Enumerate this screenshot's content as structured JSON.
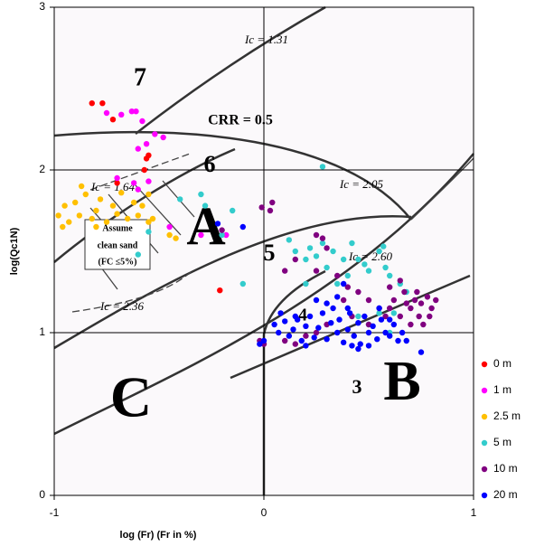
{
  "chart_data": {
    "type": "scatter",
    "xlabel": "log (Fr)    (Fr in %)",
    "ylabel": "log(Qc1N)",
    "xlim": [
      -1,
      1
    ],
    "ylim": [
      0,
      3
    ],
    "xticks": [
      -1,
      0,
      1
    ],
    "yticks": [
      0,
      1,
      2,
      3
    ],
    "grid": true,
    "legend": "right",
    "annotations": [
      "7",
      "CRR = 0.5",
      "Ic = 1.31",
      "6",
      "Ic = 1.64",
      "Assume",
      "clean sand",
      "(FC ≤5%)",
      "A",
      "5",
      "Ic = 2.05",
      "Ic = 2.60",
      "Ic = 2.36",
      "4",
      "C",
      "3",
      "B"
    ],
    "series": [
      {
        "name": "0 m",
        "color": "#ff0000",
        "x": [
          -0.82,
          -0.77,
          -0.72,
          -0.55,
          -0.56,
          -0.57,
          -0.7,
          -0.21
        ],
        "values": [
          2.41,
          2.41,
          2.31,
          2.09,
          2.07,
          2.0,
          1.92,
          1.26
        ]
      },
      {
        "name": "1 m",
        "color": "#ff00ff",
        "x": [
          -0.75,
          -0.68,
          -0.63,
          -0.61,
          -0.58,
          -0.52,
          -0.48,
          -0.6,
          -0.56,
          -0.7,
          -0.62,
          -0.6,
          -0.55,
          -0.3,
          -0.18,
          -0.45
        ],
        "values": [
          2.35,
          2.34,
          2.36,
          2.36,
          2.3,
          2.22,
          2.2,
          2.13,
          2.16,
          1.95,
          1.92,
          1.88,
          1.93,
          1.6,
          1.6,
          1.65
        ]
      },
      {
        "name": "2.5 m",
        "color": "#ffc000",
        "x": [
          -0.98,
          -0.96,
          -0.95,
          -0.93,
          -0.9,
          -0.88,
          -0.85,
          -0.82,
          -0.8,
          -0.78,
          -0.75,
          -0.72,
          -0.7,
          -0.68,
          -0.65,
          -0.62,
          -0.6,
          -0.58,
          -0.55,
          -0.53,
          -0.45,
          -0.42,
          -0.55,
          -0.87,
          -0.8
        ],
        "values": [
          1.72,
          1.65,
          1.78,
          1.68,
          1.8,
          1.72,
          1.85,
          1.7,
          1.75,
          1.82,
          1.68,
          1.78,
          1.73,
          1.86,
          1.7,
          1.8,
          1.72,
          1.78,
          1.85,
          1.7,
          1.6,
          1.58,
          1.68,
          1.9,
          1.65
        ]
      },
      {
        "name": "5 m",
        "color": "#33cccc",
        "x": [
          -0.4,
          -0.3,
          -0.28,
          -0.15,
          -0.6,
          -0.2,
          -0.1,
          -0.55,
          0.12,
          0.15,
          0.2,
          0.22,
          0.25,
          0.28,
          0.3,
          0.33,
          0.38,
          0.42,
          0.45,
          0.48,
          0.5,
          0.55,
          0.57,
          0.58,
          0.6,
          0.28,
          0.35,
          0.45,
          0.5,
          0.55,
          0.62,
          0.6,
          0.65,
          0.68,
          0.4,
          0.2
        ],
        "values": [
          1.82,
          1.85,
          1.78,
          1.75,
          1.48,
          1.6,
          1.3,
          1.62,
          1.57,
          1.5,
          1.45,
          1.52,
          1.47,
          1.55,
          1.4,
          1.5,
          1.45,
          1.55,
          1.45,
          1.42,
          1.38,
          1.5,
          1.53,
          1.4,
          1.35,
          2.02,
          1.3,
          1.1,
          1.05,
          1.12,
          1.12,
          1.0,
          1.3,
          1.25,
          1.35,
          1.3
        ]
      },
      {
        "name": "10 m",
        "color": "#800080",
        "x": [
          0.04,
          0.03,
          0.1,
          0.15,
          0.25,
          0.28,
          0.3,
          0.25,
          0.35,
          0.4,
          0.38,
          0.45,
          0.5,
          0.55,
          0.58,
          0.6,
          0.62,
          0.65,
          0.67,
          0.7,
          0.72,
          0.74,
          0.75,
          0.78,
          0.8,
          0.82,
          0.76,
          0.7,
          0.68,
          0.73,
          0.79,
          0.1,
          0.2,
          0.25,
          -0.02,
          0.0,
          0.15,
          0.3,
          0.42,
          -0.2,
          -0.01,
          0.6,
          0.65,
          0.5
        ],
        "values": [
          1.8,
          1.75,
          1.38,
          1.45,
          1.6,
          1.58,
          1.52,
          1.38,
          1.35,
          1.28,
          1.2,
          1.25,
          1.2,
          1.15,
          1.1,
          1.15,
          1.2,
          1.1,
          1.25,
          1.15,
          1.2,
          1.1,
          1.18,
          1.22,
          1.15,
          1.2,
          1.05,
          1.05,
          1.18,
          1.25,
          1.1,
          0.95,
          0.98,
          1.0,
          0.95,
          0.93,
          0.93,
          1.05,
          1.1,
          1.63,
          1.77,
          1.28,
          1.32,
          1.05
        ]
      },
      {
        "name": "20 m",
        "color": "#0000ff",
        "x": [
          -0.02,
          0.0,
          0.05,
          0.07,
          0.1,
          0.12,
          0.14,
          0.16,
          0.18,
          0.2,
          0.22,
          0.24,
          0.26,
          0.28,
          0.3,
          0.32,
          0.33,
          0.35,
          0.36,
          0.38,
          0.4,
          0.41,
          0.43,
          0.45,
          0.46,
          0.48,
          0.5,
          0.52,
          0.54,
          0.56,
          0.58,
          0.6,
          0.62,
          0.64,
          0.66,
          0.68,
          0.75,
          0.3,
          0.35,
          0.4,
          0.45,
          0.5,
          0.25,
          0.15,
          0.55,
          0.6,
          0.2,
          0.38,
          -0.1,
          -0.22,
          0.08,
          0.42
        ],
        "values": [
          0.93,
          0.95,
          1.05,
          1.0,
          1.07,
          0.98,
          1.02,
          1.08,
          0.95,
          1.04,
          1.1,
          0.97,
          1.03,
          1.12,
          0.96,
          1.06,
          1.15,
          1.0,
          1.08,
          0.94,
          1.02,
          1.12,
          0.98,
          1.06,
          0.93,
          1.1,
          1.0,
          1.04,
          0.96,
          1.08,
          1.0,
          0.98,
          1.05,
          0.95,
          1.0,
          0.95,
          0.88,
          1.18,
          1.22,
          1.15,
          0.9,
          0.92,
          1.2,
          1.1,
          1.15,
          1.08,
          0.92,
          1.3,
          1.65,
          1.67,
          1.12,
          0.92
        ]
      }
    ]
  }
}
